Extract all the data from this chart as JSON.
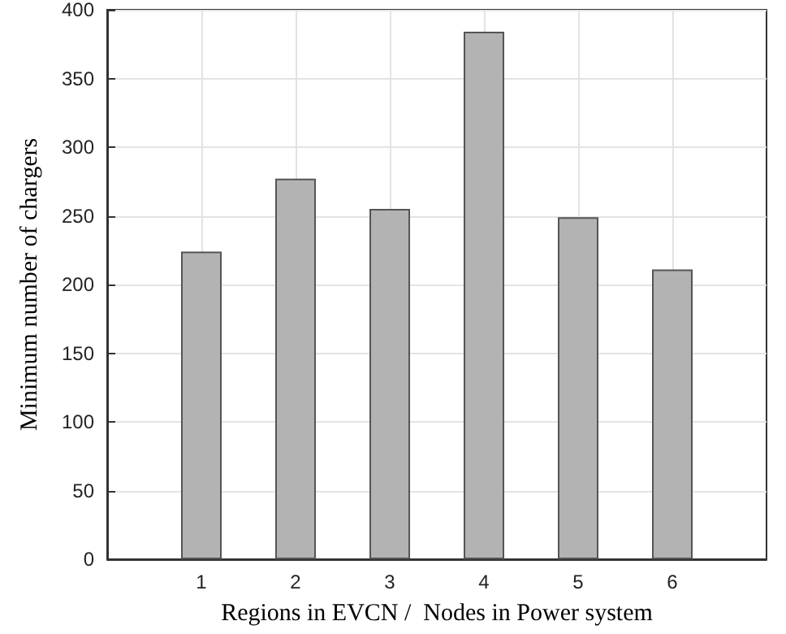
{
  "chart_data": {
    "type": "bar",
    "xlabel": "Regions in EVCN /  Nodes in Power system",
    "ylabel": "Minimum number of chargers",
    "x": [
      1,
      2,
      3,
      4,
      5,
      6
    ],
    "values": [
      224,
      277,
      255,
      384,
      249,
      211
    ],
    "color": "#b3b3b3",
    "xlim": [
      0,
      7
    ],
    "xticks": [
      1,
      2,
      3,
      4,
      5,
      6
    ],
    "ylim": [
      0,
      400
    ],
    "yticks": [
      0,
      50,
      100,
      150,
      200,
      250,
      300,
      350,
      400
    ],
    "grid": true
  }
}
